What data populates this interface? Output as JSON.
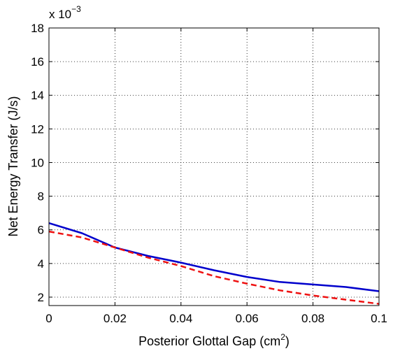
{
  "chart_data": {
    "type": "line",
    "title": "",
    "xlabel": "Posterior Glottal Gap (cm",
    "xlabel_sup": "2",
    "xlabel_end": ")",
    "ylabel": "Net Energy Transfer (J/s)",
    "y_multiplier_base": "x 10",
    "y_multiplier_exp": "−3",
    "xlim": [
      0,
      0.1
    ],
    "ylim": [
      1.5,
      18
    ],
    "x_ticks": [
      0,
      0.02,
      0.04,
      0.06,
      0.08,
      0.1
    ],
    "x_tick_labels": [
      "0",
      "0.02",
      "0.04",
      "0.06",
      "0.08",
      "0.1"
    ],
    "y_ticks": [
      2,
      4,
      6,
      8,
      10,
      12,
      14,
      16,
      18
    ],
    "y_tick_labels": [
      "2",
      "4",
      "6",
      "8",
      "10",
      "12",
      "14",
      "16",
      "18"
    ],
    "grid": true,
    "series": [
      {
        "color": "#0000cc",
        "style": "solid",
        "x": [
          0,
          0.01,
          0.02,
          0.03,
          0.04,
          0.05,
          0.06,
          0.07,
          0.08,
          0.09,
          0.1
        ],
        "y": [
          6.4,
          5.8,
          4.95,
          4.45,
          4.05,
          3.6,
          3.2,
          2.9,
          2.75,
          2.6,
          2.35
        ]
      },
      {
        "color": "#ee1111",
        "style": "dashed",
        "x": [
          0,
          0.01,
          0.02,
          0.03,
          0.04,
          0.05,
          0.06,
          0.07,
          0.08,
          0.09,
          0.1
        ],
        "y": [
          5.9,
          5.55,
          4.95,
          4.35,
          3.85,
          3.25,
          2.8,
          2.4,
          2.1,
          1.85,
          1.6
        ]
      }
    ]
  }
}
